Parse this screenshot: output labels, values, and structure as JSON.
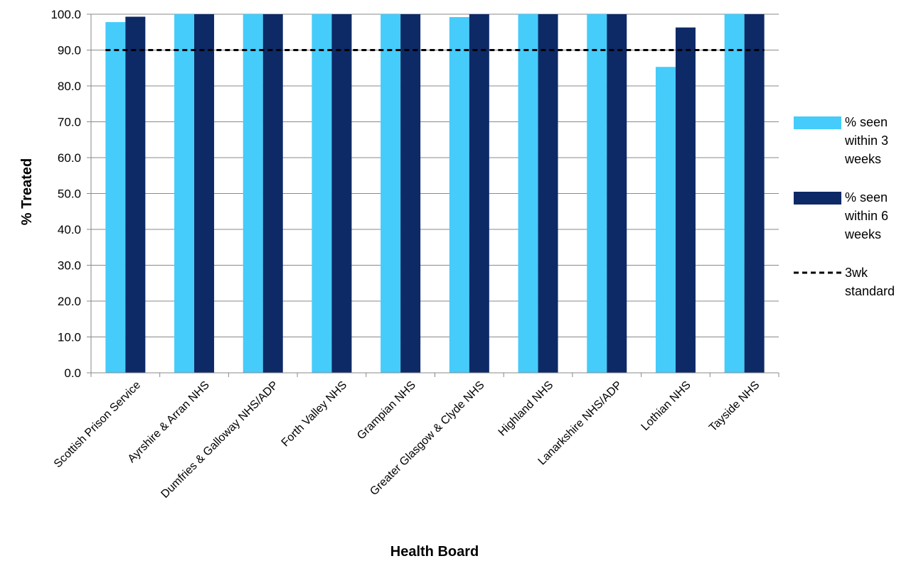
{
  "chart_data": {
    "type": "bar",
    "title": "",
    "xlabel": "Health Board",
    "ylabel": "% Treated",
    "ylim": [
      0,
      100
    ],
    "ytick_step": 10,
    "ytick_decimals": 1,
    "grid": true,
    "legend_position": "right",
    "categories": [
      "Scottish Prison Service",
      "Ayrshire & Arran NHS",
      "Dumfries & Galloway NHS/ADP",
      "Forth Valley NHS",
      "Grampian NHS",
      "Greater Glasgow & Clyde NHS",
      "Highland NHS",
      "Lanarkshire NHS/ADP",
      "Lothian NHS",
      "Tayside NHS"
    ],
    "series": [
      {
        "name": "% seen within 3 weeks",
        "color": "#45CCFA",
        "values": [
          97.8,
          100,
          100,
          100,
          100,
          99.2,
          100,
          100,
          85.3,
          100
        ]
      },
      {
        "name": "% seen within 6 weeks",
        "color": "#0D2A66",
        "values": [
          99.3,
          100,
          100,
          100,
          100,
          100,
          100,
          100,
          96.3,
          100
        ]
      }
    ],
    "reference_line": {
      "name": "3wk standard",
      "value": 90,
      "color": "#000000",
      "style": "dashed"
    }
  }
}
